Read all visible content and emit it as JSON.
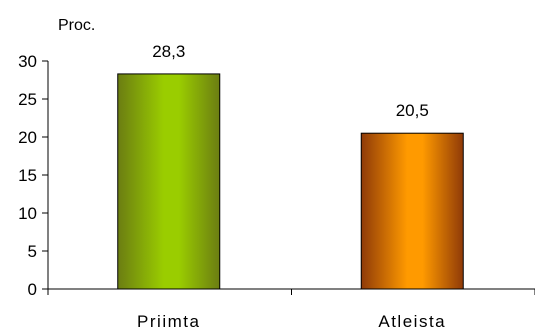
{
  "chart_data": {
    "type": "bar",
    "title": "",
    "ylabel": "Proc.",
    "xlabel": "",
    "categories": [
      "Priimta",
      "Atleista"
    ],
    "values": [
      28.3,
      20.5
    ],
    "value_labels": [
      "28,3",
      "20,5"
    ],
    "ylim": [
      0,
      30
    ],
    "yticks": [
      0,
      5,
      10,
      15,
      20,
      25,
      30
    ],
    "grid": false,
    "legend": "none",
    "bar_colors": [
      {
        "light": "#9acd00",
        "dark": "#6b7d12"
      },
      {
        "light": "#ff9a00",
        "dark": "#8f3a08"
      }
    ]
  }
}
